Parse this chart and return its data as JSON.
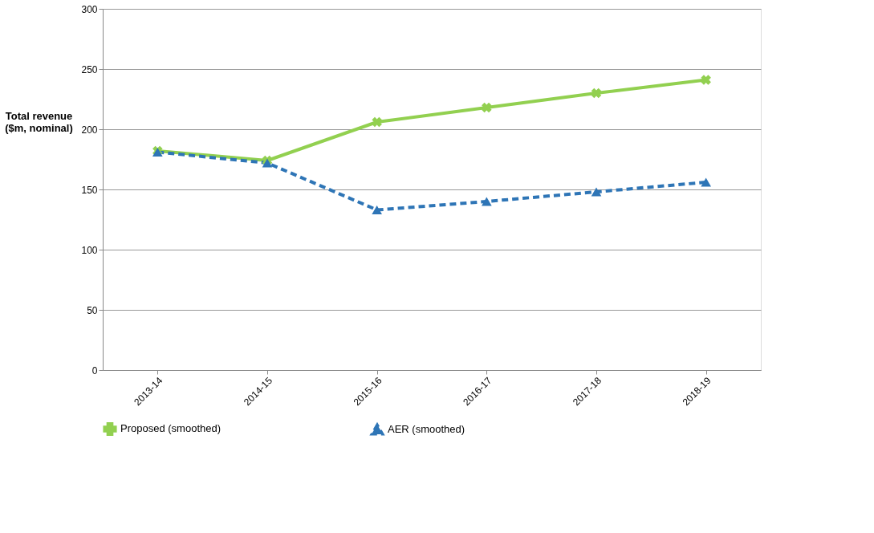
{
  "chart_data": {
    "type": "line",
    "ylabel": "Total revenue ($m, nominal)",
    "categories": [
      "2013-14",
      "2014-15",
      "2015-16",
      "2016-17",
      "2017-18",
      "2018-19"
    ],
    "series": [
      {
        "name": "Proposed (smoothed)",
        "color": "#92d050",
        "values": [
          182,
          174,
          206,
          218,
          230,
          241
        ],
        "marker": "cross",
        "line_style": "solid"
      },
      {
        "name": "AER (smoothed)",
        "color": "#2e75b6",
        "values": [
          181,
          172,
          133,
          140,
          148,
          156
        ],
        "marker": "triangle",
        "line_style": "dashed"
      }
    ],
    "ylim": [
      0,
      300
    ],
    "yticks": [
      0,
      50,
      100,
      150,
      200,
      250,
      300
    ],
    "grid": "y",
    "legend": "bottom"
  }
}
